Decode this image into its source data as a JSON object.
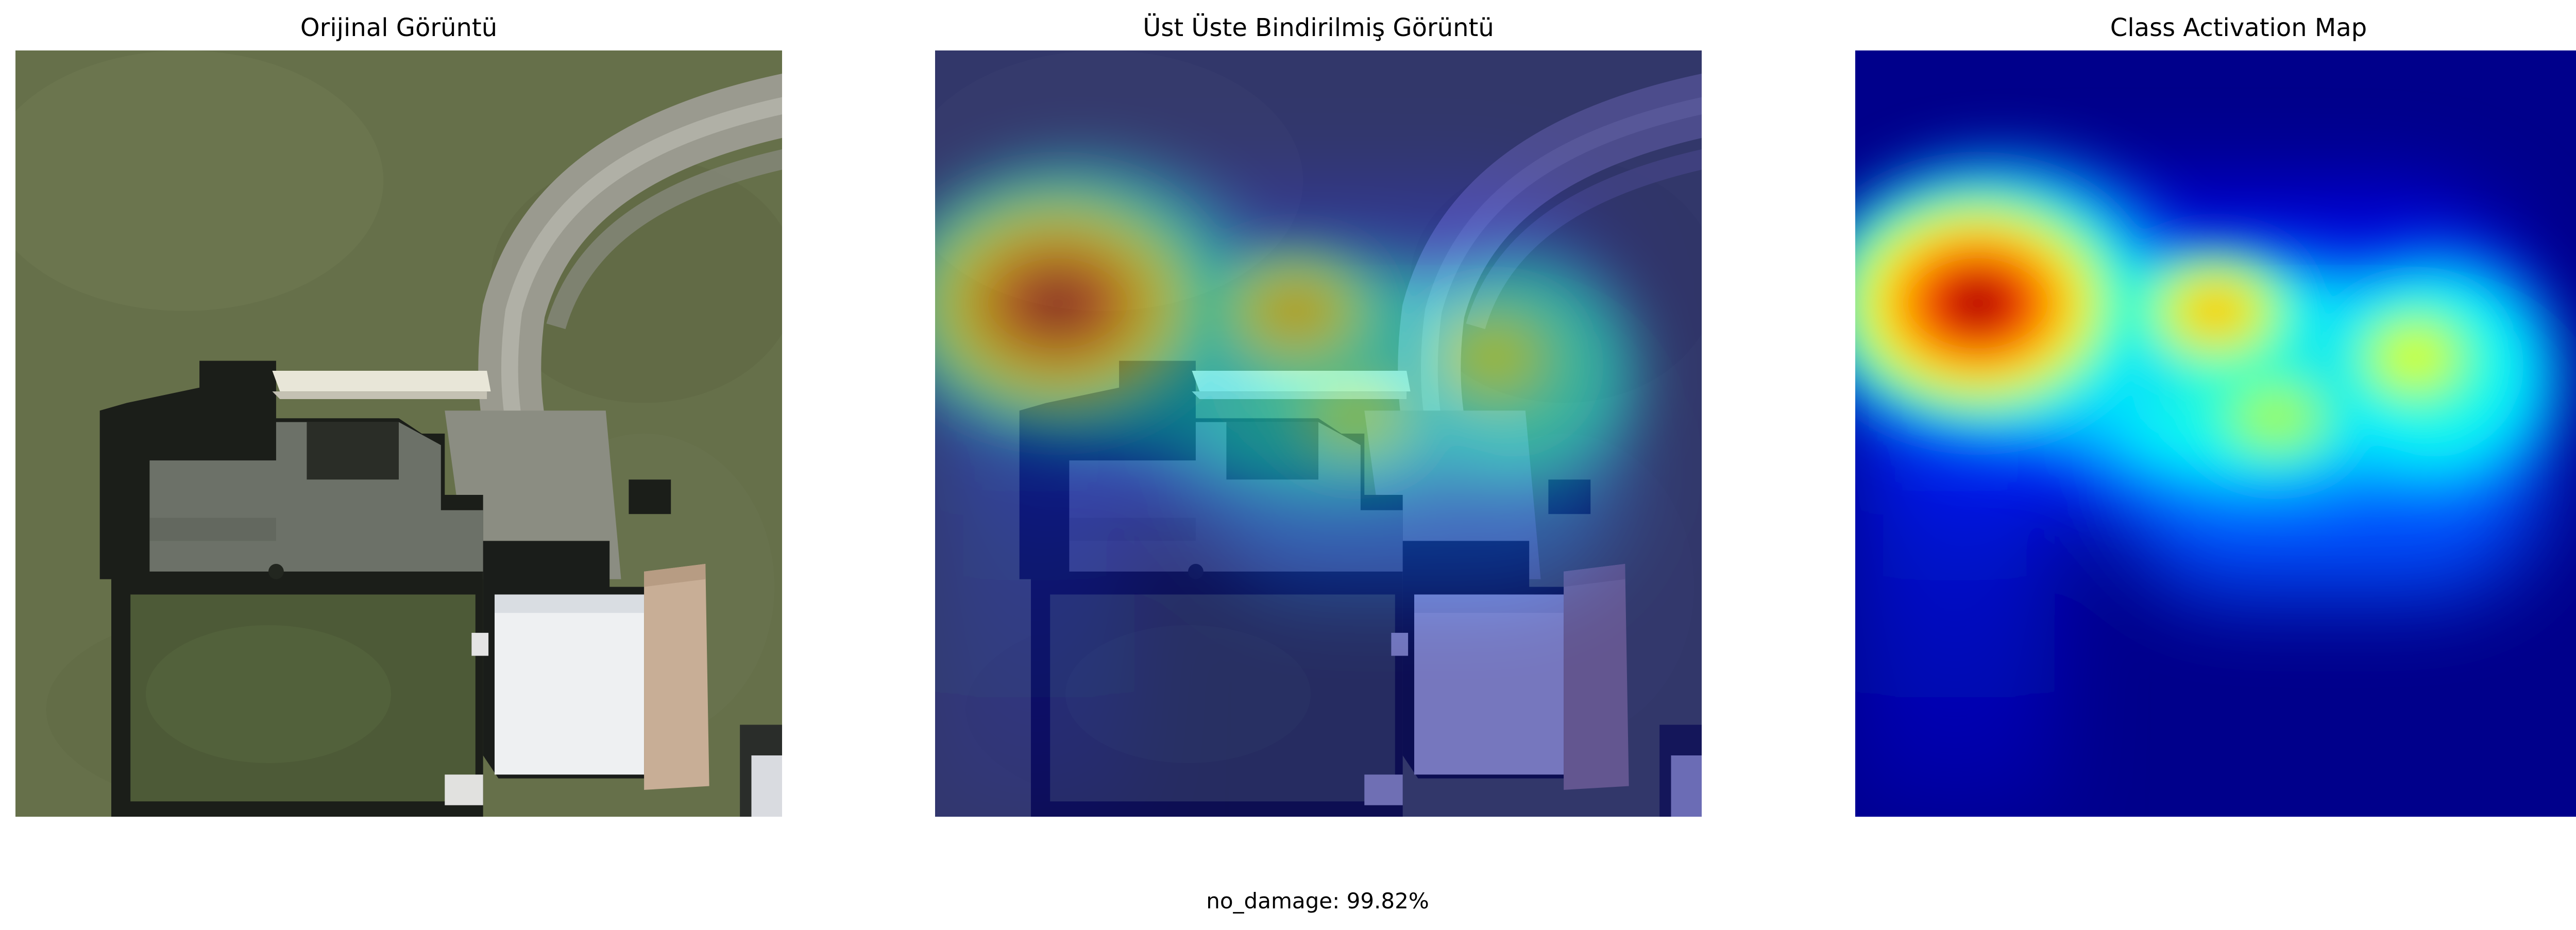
{
  "panels": [
    {
      "title": "Orijinal Görüntü",
      "image": "aerial-photo-of-house"
    },
    {
      "title": "Üst Üste Bindirilmiş Görüntü",
      "image": "aerial-photo-with-heatmap-overlay"
    },
    {
      "title": "Class Activation Map",
      "image": "jet-colormap-heatmap"
    }
  ],
  "caption": "no_damage: 99.82%",
  "colors": {
    "grass": "#66704a",
    "roof_dark": "#1a1d18",
    "roof_grey": "#6c7168",
    "metal_roof": "#eef0f2",
    "driveway": "#9a9a90",
    "jet_low": "#00008b",
    "jet_mid": "#00ffff",
    "jet_high": "#ff0000",
    "jet_peak": "#800000"
  }
}
